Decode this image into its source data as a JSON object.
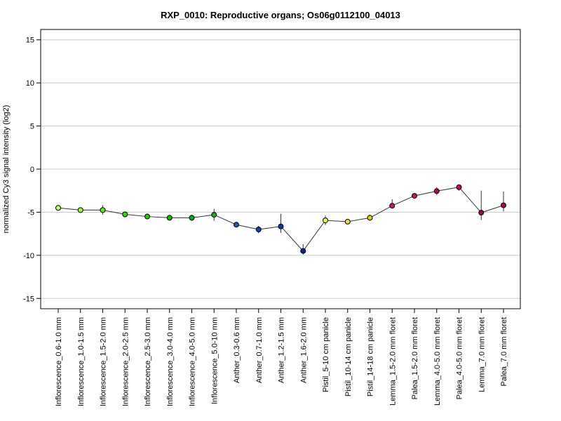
{
  "chart_data": {
    "type": "line",
    "title": "RXP_0010: Reproductive organs; Os06g0112100_04013",
    "xlabel": "",
    "ylabel": "normalized Cy3 signal intensity (log2)",
    "ylim": [
      -16.2,
      16.2
    ],
    "yticks": [
      15,
      10,
      5,
      0,
      -5,
      -10,
      -15
    ],
    "grid": true,
    "categories": [
      "Inflorescence_0.6-1.0 mm",
      "Inflorescence_1.0-1.5 mm",
      "Inflorescence_1.5-2.0 mm",
      "Inflorescence_2.0-2.5 mm",
      "Inflorescence_2.5-3.0 mm",
      "Inflorescence_3.0-4.0 mm",
      "Inflorescence_4.0-5.0 mm",
      "Inflorescence_5.0-10 mm",
      "Anther_0.3-0.6 mm",
      "Anther_0.7-1.0 mm",
      "Anther_1.2-1.5 mm",
      "Anther_1.6-2.0 mm",
      "Pistil_5-10 cm panicle",
      "Pistil_10-14 cm panicle",
      "Pistil_14-18 cm panicle",
      "Lemma_1.5-2.0 mm floret",
      "Palea_1.5-2.0 mm floret",
      "Lemma_4.0-5.0 mm floret",
      "Palea_4.0-5.0 mm floret",
      "Lemma_7.0 mm floret",
      "Palea_7.0 mm floret"
    ],
    "values": [
      -4.5,
      -4.75,
      -4.75,
      -5.25,
      -5.5,
      -5.65,
      -5.65,
      -5.3,
      -6.45,
      -7.0,
      -6.65,
      -9.5,
      -5.95,
      -6.1,
      -5.65,
      -4.25,
      -3.1,
      -2.55,
      -2.1,
      -5.05,
      -4.2
    ],
    "error_low": [
      -4.6,
      -4.8,
      -5.3,
      -5.4,
      -5.8,
      -5.8,
      -6.0,
      -6.0,
      -6.55,
      -7.45,
      -7.4,
      -9.9,
      -6.5,
      -6.2,
      -5.9,
      -4.55,
      -3.2,
      -3.0,
      -2.5,
      -5.9,
      -4.9
    ],
    "error_high": [
      -4.4,
      -4.7,
      -4.2,
      -5.1,
      -5.2,
      -5.5,
      -5.3,
      -4.6,
      -6.35,
      -6.6,
      -5.2,
      -8.7,
      -5.4,
      -6.0,
      -5.3,
      -3.5,
      -3.0,
      -2.1,
      -1.8,
      -2.5,
      -2.6
    ],
    "point_colors": [
      "#ccff66",
      "#99ff33",
      "#66ee00",
      "#33dd00",
      "#22cc00",
      "#11bb00",
      "#11aa11",
      "#22aa22",
      "#2255aa",
      "#1144aa",
      "#1133aa",
      "#002299",
      "#eeee55",
      "#eedd33",
      "#ddcc22",
      "#cc1177",
      "#cc1166",
      "#bb0066",
      "#cc0066",
      "#aa0055",
      "#bb0055"
    ],
    "colors": {
      "line": "#333333",
      "grid": "#c8c8c8",
      "frame": "#000000"
    }
  }
}
